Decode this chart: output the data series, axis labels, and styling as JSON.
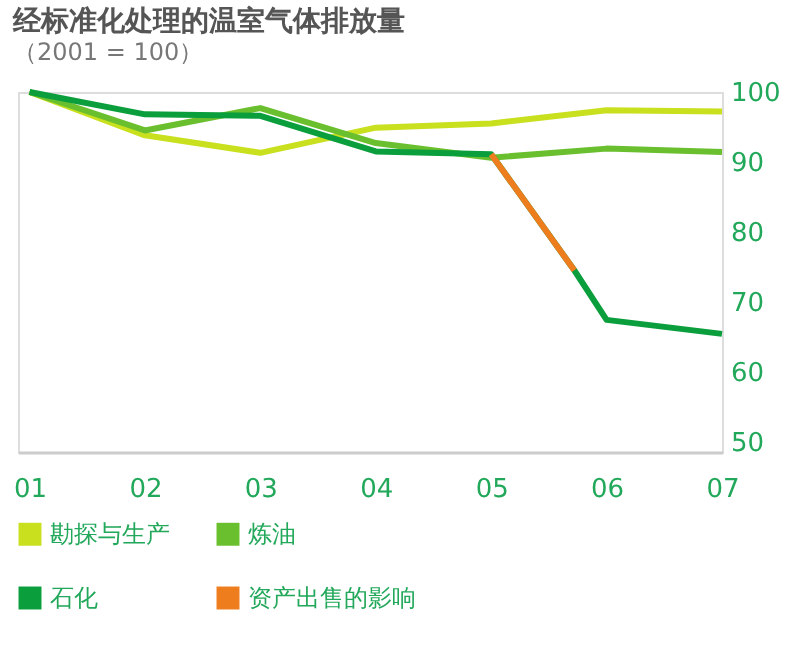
{
  "chart_data": {
    "type": "line",
    "title": "经标准化处理的温室气体排放量",
    "subtitle": "（2001 = 100）",
    "xlim": [
      0.9,
      7
    ],
    "xticks": [
      {
        "value": 1,
        "label": "01"
      },
      {
        "value": 2,
        "label": "02"
      },
      {
        "value": 3,
        "label": "03"
      },
      {
        "value": 4,
        "label": "04"
      },
      {
        "value": 5,
        "label": "05"
      },
      {
        "value": 6,
        "label": "06"
      },
      {
        "value": 7,
        "label": "07"
      }
    ],
    "ylim": [
      48.5,
      100
    ],
    "yticks": [
      50,
      60,
      70,
      80,
      90,
      100
    ],
    "grid": false,
    "legend": "bottom",
    "marker": "none",
    "line_style": "solid",
    "series": [
      {
        "name": "勘探与生产",
        "color": "#c8e01e",
        "x": [
          1,
          2,
          3,
          4,
          5,
          6,
          7
        ],
        "values": [
          100,
          93.8,
          91.3,
          94.9,
          95.5,
          97.4,
          97.2
        ]
      },
      {
        "name": "炼油",
        "color": "#6abf2e",
        "x": [
          1,
          2,
          3,
          4,
          5,
          6,
          7
        ],
        "values": [
          100,
          94.5,
          97.7,
          92.7,
          90.6,
          91.9,
          91.4
        ]
      },
      {
        "name": "石化",
        "color": "#0a9e3c",
        "x": [
          1,
          2,
          3,
          4,
          5,
          5.72,
          6,
          7
        ],
        "values": [
          100,
          96.8,
          96.6,
          91.5,
          91.1,
          74.5,
          67.4,
          65.4
        ]
      },
      {
        "name": "资产出售的影响",
        "color": "#ee7d1e",
        "x": [
          5,
          5.72
        ],
        "values": [
          91.1,
          74.5
        ]
      }
    ]
  }
}
